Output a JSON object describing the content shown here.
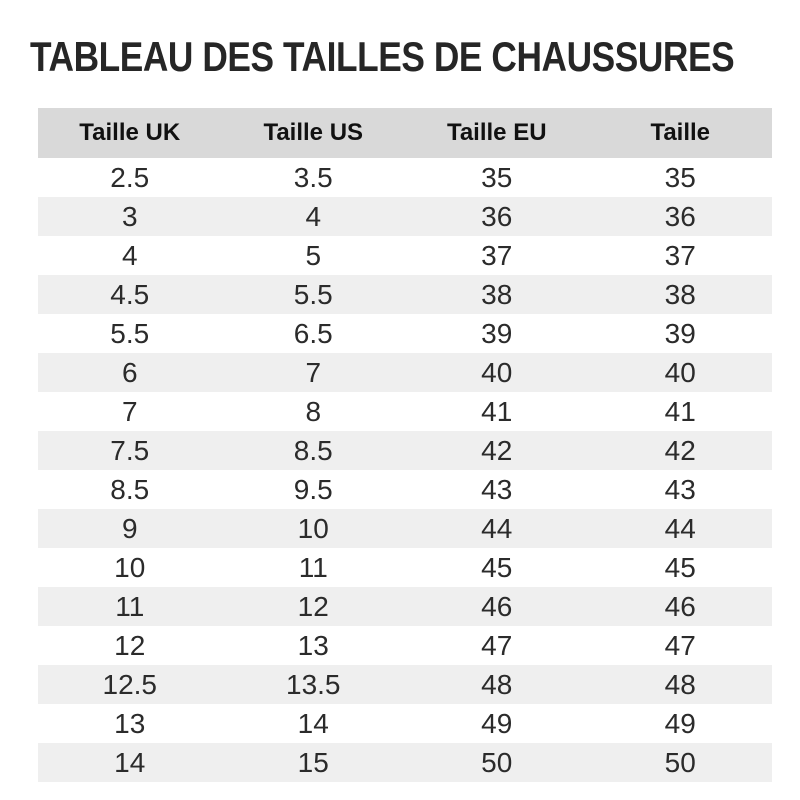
{
  "page": {
    "title": "TABLEAU DES TAILLES DE CHAUSSURES"
  },
  "table": {
    "headers": [
      "Taille UK",
      "Taille US",
      "Taille EU",
      "Taille"
    ],
    "rows": [
      [
        "2.5",
        "3.5",
        "35",
        "35"
      ],
      [
        "3",
        "4",
        "36",
        "36"
      ],
      [
        "4",
        "5",
        "37",
        "37"
      ],
      [
        "4.5",
        "5.5",
        "38",
        "38"
      ],
      [
        "5.5",
        "6.5",
        "39",
        "39"
      ],
      [
        "6",
        "7",
        "40",
        "40"
      ],
      [
        "7",
        "8",
        "41",
        "41"
      ],
      [
        "7.5",
        "8.5",
        "42",
        "42"
      ],
      [
        "8.5",
        "9.5",
        "43",
        "43"
      ],
      [
        "9",
        "10",
        "44",
        "44"
      ],
      [
        "10",
        "11",
        "45",
        "45"
      ],
      [
        "11",
        "12",
        "46",
        "46"
      ],
      [
        "12",
        "13",
        "47",
        "47"
      ],
      [
        "12.5",
        "13.5",
        "48",
        "48"
      ],
      [
        "13",
        "14",
        "49",
        "49"
      ],
      [
        "14",
        "15",
        "50",
        "50"
      ]
    ]
  },
  "colors": {
    "page_bg": "#ffffff",
    "title_text": "#262626",
    "header_bg": "#d9d9d9",
    "header_text": "#111111",
    "row_stripe_bg": "#efefef",
    "cell_text": "#2b2b2b"
  }
}
